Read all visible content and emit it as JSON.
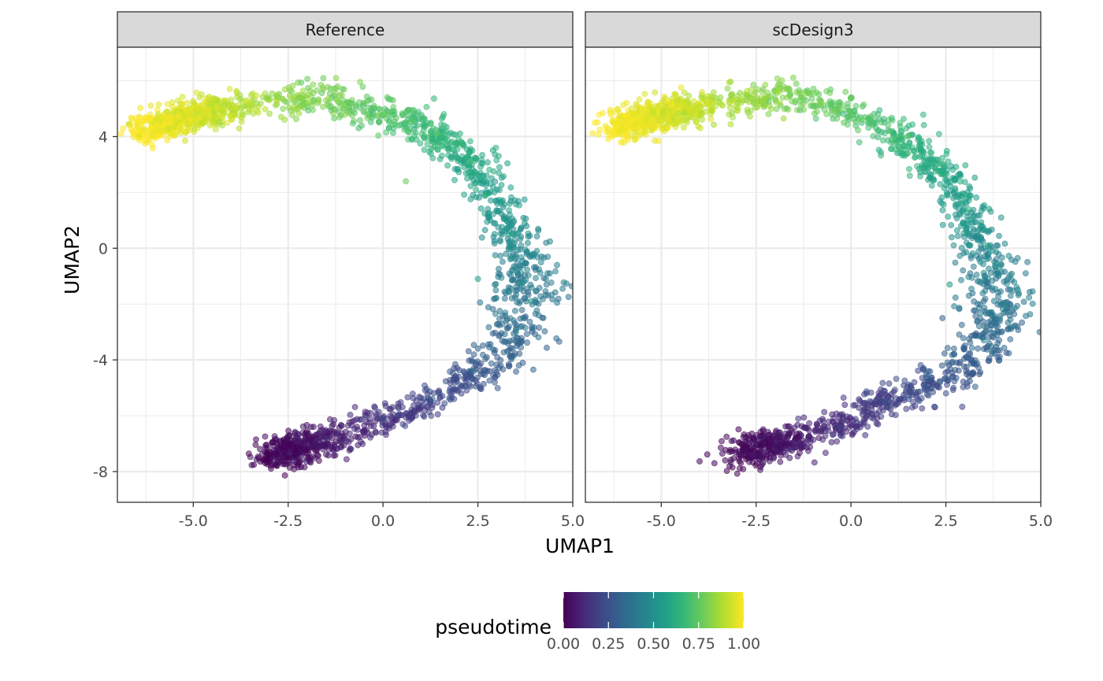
{
  "chart_data": {
    "type": "scatter",
    "facet_by": "dataset",
    "xlabel": "UMAP1",
    "ylabel": "UMAP2",
    "xlim": [
      -7.0,
      5.0
    ],
    "ylim": [
      -9.1,
      7.2
    ],
    "xticks": [
      -5.0,
      -2.5,
      0.0,
      2.5,
      5.0
    ],
    "xtick_labels": [
      "-5.0",
      "-2.5",
      "0.0",
      "2.5",
      "5.0"
    ],
    "yticks": [
      -8,
      -4,
      0,
      4
    ],
    "ytick_labels": [
      "-8",
      "-4",
      "0",
      "4"
    ],
    "grid": true,
    "color_by": "pseudotime",
    "colormap": "viridis",
    "viridis_stops": [
      "#440154",
      "#482878",
      "#3e4a89",
      "#31688e",
      "#26828e",
      "#1f9e89",
      "#35b779",
      "#6dcd59",
      "#b4de2c",
      "#fde725"
    ],
    "point_alpha": 0.55,
    "legend": {
      "title": "pseudotime",
      "position": "bottom",
      "ticks": [
        0.0,
        0.25,
        0.5,
        0.75,
        1.0
      ],
      "tick_labels": [
        "0.00",
        "0.25",
        "0.50",
        "0.75",
        "1.00"
      ]
    },
    "panels": [
      {
        "title": "Reference",
        "approx_n_points": 2000,
        "trajectory": [
          [
            -6.3,
            4.2
          ],
          [
            -5.2,
            4.7
          ],
          [
            -4.0,
            5.0
          ],
          [
            -2.8,
            5.3
          ],
          [
            -1.5,
            5.4
          ],
          [
            -0.5,
            5.0
          ],
          [
            0.5,
            4.6
          ],
          [
            1.5,
            4.0
          ],
          [
            2.2,
            3.2
          ],
          [
            2.8,
            2.0
          ],
          [
            3.4,
            0.6
          ],
          [
            3.8,
            -1.2
          ],
          [
            3.6,
            -2.8
          ],
          [
            3.1,
            -3.8
          ],
          [
            2.3,
            -4.6
          ],
          [
            1.2,
            -5.5
          ],
          [
            0.0,
            -6.2
          ],
          [
            -1.3,
            -6.8
          ],
          [
            -2.6,
            -7.3
          ],
          [
            -3.0,
            -7.5
          ]
        ],
        "points": [
          {
            "x": -6.1,
            "y": 4.3,
            "pseudotime": 1.0
          },
          {
            "x": -5.4,
            "y": 4.8,
            "pseudotime": 0.97
          },
          {
            "x": -4.6,
            "y": 4.9,
            "pseudotime": 0.95
          },
          {
            "x": -3.5,
            "y": 5.2,
            "pseudotime": 0.91
          },
          {
            "x": -2.4,
            "y": 5.4,
            "pseudotime": 0.87
          },
          {
            "x": -1.2,
            "y": 5.3,
            "pseudotime": 0.83
          },
          {
            "x": 0.0,
            "y": 4.8,
            "pseudotime": 0.79
          },
          {
            "x": 0.6,
            "y": 2.4,
            "pseudotime": 0.77
          },
          {
            "x": 1.4,
            "y": 4.1,
            "pseudotime": 0.74
          },
          {
            "x": 2.3,
            "y": 3.1,
            "pseudotime": 0.69
          },
          {
            "x": 2.7,
            "y": 1.9,
            "pseudotime": 0.65
          },
          {
            "x": 3.4,
            "y": 0.5,
            "pseudotime": 0.59
          },
          {
            "x": 2.5,
            "y": -1.1,
            "pseudotime": 0.55
          },
          {
            "x": 3.9,
            "y": -1.9,
            "pseudotime": 0.5
          },
          {
            "x": 3.5,
            "y": -3.0,
            "pseudotime": 0.44
          },
          {
            "x": 2.4,
            "y": -4.4,
            "pseudotime": 0.38
          },
          {
            "x": 1.3,
            "y": -5.4,
            "pseudotime": 0.31
          },
          {
            "x": 0.0,
            "y": -6.1,
            "pseudotime": 0.24
          },
          {
            "x": -1.5,
            "y": -6.8,
            "pseudotime": 0.15
          },
          {
            "x": -2.9,
            "y": -7.5,
            "pseudotime": 0.05
          }
        ]
      },
      {
        "title": "scDesign3",
        "approx_n_points": 2000,
        "trajectory": [
          [
            -6.2,
            4.3
          ],
          [
            -5.0,
            4.8
          ],
          [
            -3.8,
            5.1
          ],
          [
            -2.6,
            5.4
          ],
          [
            -1.4,
            5.4
          ],
          [
            -0.3,
            5.0
          ],
          [
            0.7,
            4.4
          ],
          [
            1.7,
            3.6
          ],
          [
            2.5,
            2.6
          ],
          [
            3.1,
            1.2
          ],
          [
            3.5,
            -0.3
          ],
          [
            3.9,
            -1.8
          ],
          [
            3.6,
            -3.2
          ],
          [
            3.0,
            -4.2
          ],
          [
            2.2,
            -4.8
          ],
          [
            1.0,
            -5.5
          ],
          [
            -0.1,
            -6.2
          ],
          [
            -1.3,
            -6.8
          ],
          [
            -2.5,
            -7.2
          ],
          [
            -3.0,
            -7.5
          ]
        ],
        "points": [
          {
            "x": -6.3,
            "y": 4.0,
            "pseudotime": 1.0
          },
          {
            "x": -5.5,
            "y": 4.6,
            "pseudotime": 0.97
          },
          {
            "x": -4.3,
            "y": 5.0,
            "pseudotime": 0.94
          },
          {
            "x": -3.1,
            "y": 5.3,
            "pseudotime": 0.9
          },
          {
            "x": -1.9,
            "y": 5.6,
            "pseudotime": 0.86
          },
          {
            "x": -0.8,
            "y": 5.2,
            "pseudotime": 0.82
          },
          {
            "x": 0.3,
            "y": 4.6,
            "pseudotime": 0.78
          },
          {
            "x": 1.5,
            "y": 4.0,
            "pseudotime": 0.73
          },
          {
            "x": 2.4,
            "y": 3.0,
            "pseudotime": 0.68
          },
          {
            "x": 3.1,
            "y": 1.4,
            "pseudotime": 0.63
          },
          {
            "x": 3.6,
            "y": 0.1,
            "pseudotime": 0.57
          },
          {
            "x": 2.6,
            "y": -1.3,
            "pseudotime": 0.53
          },
          {
            "x": 4.1,
            "y": -2.0,
            "pseudotime": 0.49
          },
          {
            "x": 3.5,
            "y": -3.3,
            "pseudotime": 0.43
          },
          {
            "x": 2.0,
            "y": -4.6,
            "pseudotime": 0.36
          },
          {
            "x": 0.9,
            "y": -5.5,
            "pseudotime": 0.3
          },
          {
            "x": -0.3,
            "y": -6.4,
            "pseudotime": 0.22
          },
          {
            "x": -1.6,
            "y": -7.2,
            "pseudotime": 0.13
          },
          {
            "x": -2.6,
            "y": -7.4,
            "pseudotime": 0.07
          },
          {
            "x": -3.2,
            "y": -7.8,
            "pseudotime": 0.02
          }
        ]
      }
    ]
  }
}
